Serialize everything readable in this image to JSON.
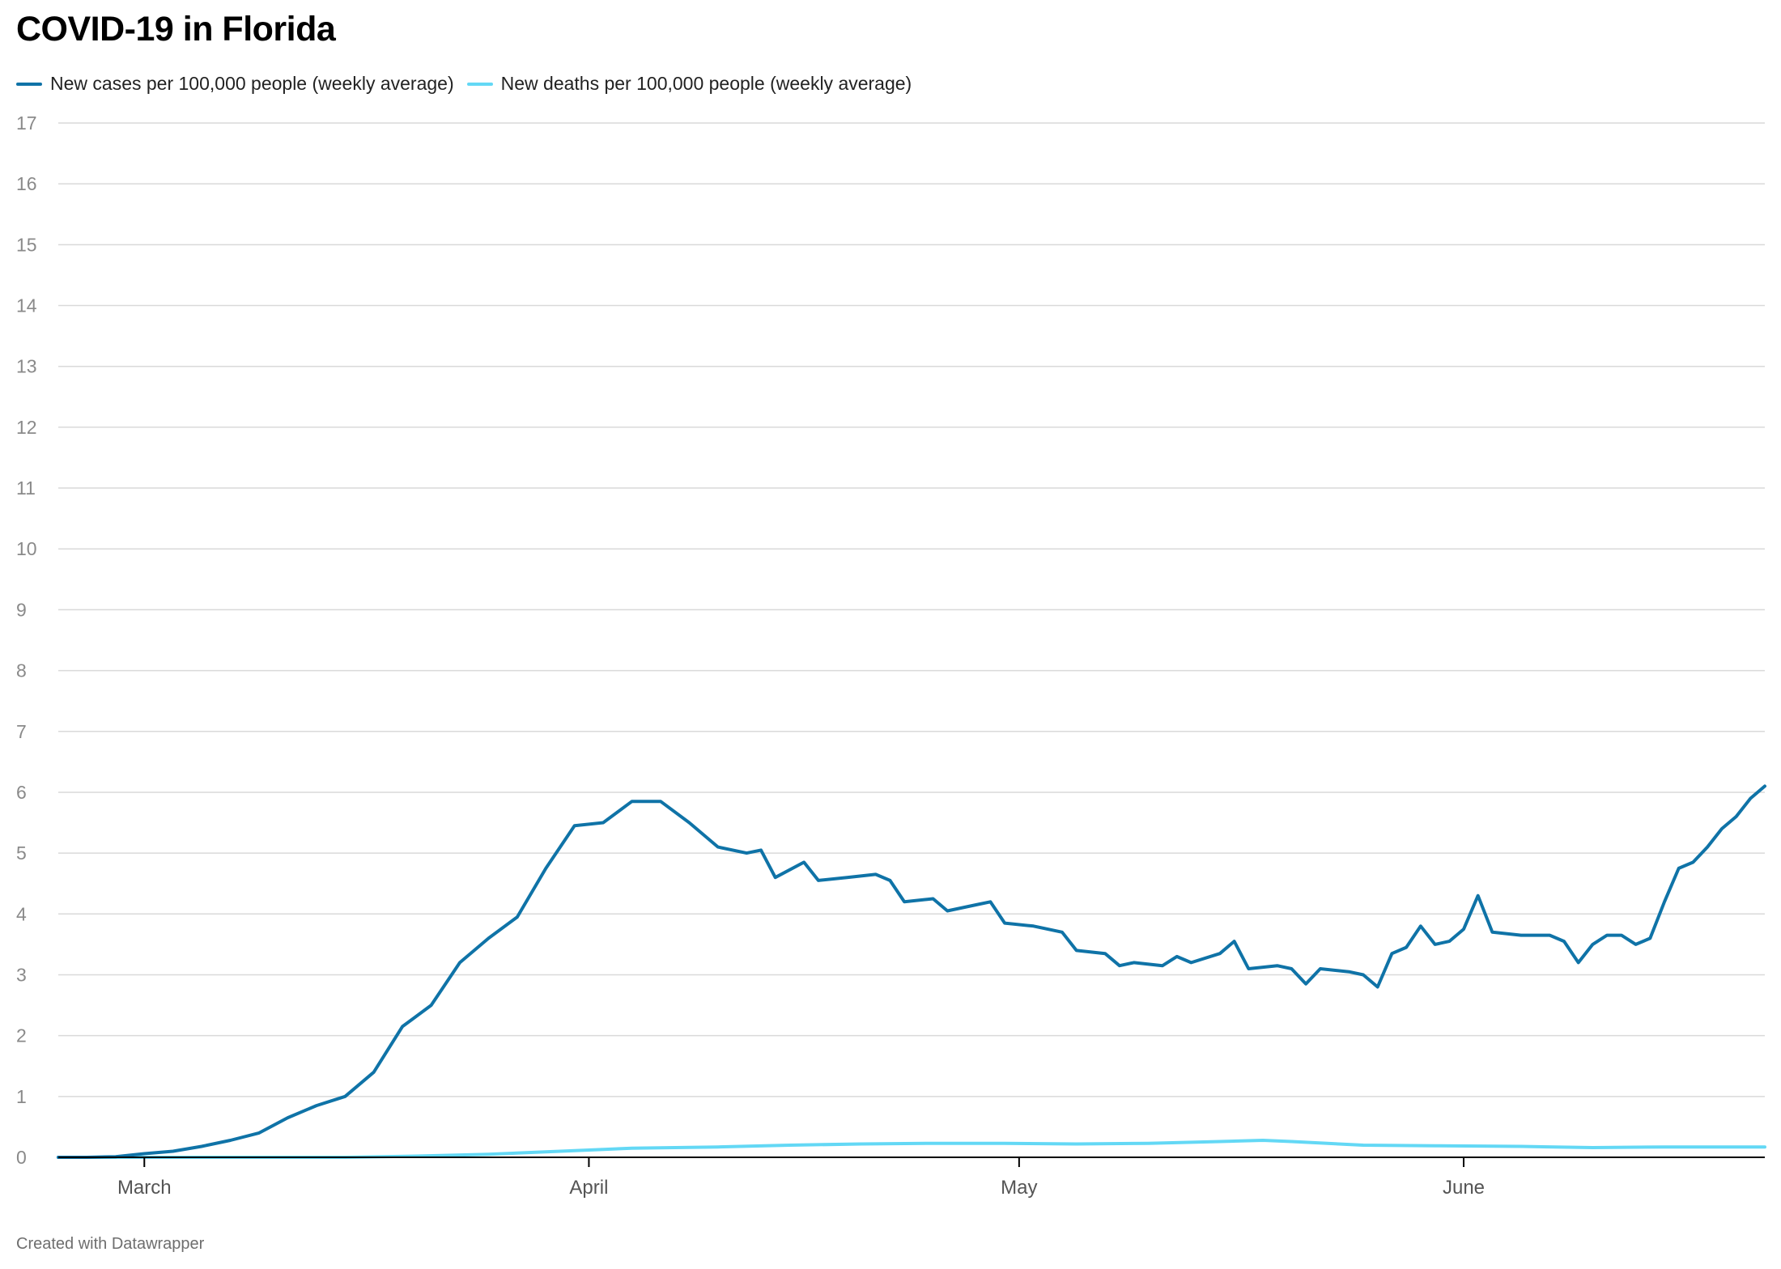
{
  "title": "COVID-19 in Florida",
  "footer": "Created with Datawrapper",
  "colors": {
    "cases": "#0f73a7",
    "deaths": "#63d8f5",
    "grid": "#d9d9d9",
    "axis": "#000000",
    "tick_text": "#8a8a8a"
  },
  "chart_data": {
    "type": "line",
    "title": "COVID-19 in Florida",
    "xlabel": "",
    "ylabel": "",
    "ylim": [
      0,
      17
    ],
    "yticks": [
      0,
      1,
      2,
      3,
      4,
      5,
      6,
      7,
      8,
      9,
      10,
      11,
      12,
      13,
      14,
      15,
      16,
      17
    ],
    "xlim": [
      "2020-02-24",
      "2020-06-22"
    ],
    "xticks": [
      {
        "label": "March",
        "date": "2020-03-01"
      },
      {
        "label": "April",
        "date": "2020-04-01"
      },
      {
        "label": "May",
        "date": "2020-05-01"
      },
      {
        "label": "June",
        "date": "2020-06-01"
      }
    ],
    "grid": true,
    "legend": "top-left",
    "series": [
      {
        "name": "New cases per 100,000 people (weekly average)",
        "color": "#0f73a7",
        "points": [
          [
            "2020-02-24",
            0.0
          ],
          [
            "2020-02-26",
            0.0
          ],
          [
            "2020-02-28",
            0.01
          ],
          [
            "2020-03-01",
            0.06
          ],
          [
            "2020-03-03",
            0.1
          ],
          [
            "2020-03-05",
            0.18
          ],
          [
            "2020-03-07",
            0.28
          ],
          [
            "2020-03-09",
            0.4
          ],
          [
            "2020-03-11",
            0.65
          ],
          [
            "2020-03-13",
            0.85
          ],
          [
            "2020-03-15",
            1.0
          ],
          [
            "2020-03-17",
            1.4
          ],
          [
            "2020-03-19",
            2.15
          ],
          [
            "2020-03-21",
            2.5
          ],
          [
            "2020-03-23",
            3.2
          ],
          [
            "2020-03-25",
            3.6
          ],
          [
            "2020-03-27",
            3.95
          ],
          [
            "2020-03-29",
            4.75
          ],
          [
            "2020-03-31",
            5.45
          ],
          [
            "2020-04-02",
            5.5
          ],
          [
            "2020-04-04",
            5.85
          ],
          [
            "2020-04-06",
            5.85
          ],
          [
            "2020-04-08",
            5.5
          ],
          [
            "2020-04-10",
            5.1
          ],
          [
            "2020-04-12",
            5.0
          ],
          [
            "2020-04-13",
            5.05
          ],
          [
            "2020-04-14",
            4.6
          ],
          [
            "2020-04-16",
            4.85
          ],
          [
            "2020-04-17",
            4.55
          ],
          [
            "2020-04-19",
            4.6
          ],
          [
            "2020-04-21",
            4.65
          ],
          [
            "2020-04-22",
            4.55
          ],
          [
            "2020-04-23",
            4.2
          ],
          [
            "2020-04-25",
            4.25
          ],
          [
            "2020-04-26",
            4.05
          ],
          [
            "2020-04-28",
            4.15
          ],
          [
            "2020-04-29",
            4.2
          ],
          [
            "2020-04-30",
            3.85
          ],
          [
            "2020-05-02",
            3.8
          ],
          [
            "2020-05-04",
            3.7
          ],
          [
            "2020-05-05",
            3.4
          ],
          [
            "2020-05-07",
            3.35
          ],
          [
            "2020-05-08",
            3.15
          ],
          [
            "2020-05-09",
            3.2
          ],
          [
            "2020-05-11",
            3.15
          ],
          [
            "2020-05-12",
            3.3
          ],
          [
            "2020-05-13",
            3.2
          ],
          [
            "2020-05-15",
            3.35
          ],
          [
            "2020-05-16",
            3.55
          ],
          [
            "2020-05-17",
            3.1
          ],
          [
            "2020-05-19",
            3.15
          ],
          [
            "2020-05-20",
            3.1
          ],
          [
            "2020-05-21",
            2.85
          ],
          [
            "2020-05-22",
            3.1
          ],
          [
            "2020-05-24",
            3.05
          ],
          [
            "2020-05-25",
            3.0
          ],
          [
            "2020-05-26",
            2.8
          ],
          [
            "2020-05-27",
            3.35
          ],
          [
            "2020-05-28",
            3.45
          ],
          [
            "2020-05-29",
            3.8
          ],
          [
            "2020-05-30",
            3.5
          ],
          [
            "2020-05-31",
            3.55
          ],
          [
            "2020-06-01",
            3.75
          ],
          [
            "2020-06-02",
            4.3
          ],
          [
            "2020-06-03",
            3.7
          ],
          [
            "2020-06-05",
            3.65
          ],
          [
            "2020-06-07",
            3.65
          ],
          [
            "2020-06-08",
            3.55
          ],
          [
            "2020-06-09",
            3.2
          ],
          [
            "2020-06-10",
            3.5
          ],
          [
            "2020-06-11",
            3.65
          ],
          [
            "2020-06-12",
            3.65
          ],
          [
            "2020-06-13",
            3.5
          ],
          [
            "2020-06-14",
            3.6
          ],
          [
            "2020-06-15",
            4.2
          ],
          [
            "2020-06-16",
            4.75
          ],
          [
            "2020-06-17",
            4.85
          ],
          [
            "2020-06-18",
            5.1
          ],
          [
            "2020-06-19",
            5.4
          ],
          [
            "2020-06-20",
            5.6
          ],
          [
            "2020-06-21",
            5.9
          ],
          [
            "2020-06-22",
            6.1
          ]
        ]
      },
      {
        "name": "New deaths per 100,000 people (weekly average)",
        "color": "#63d8f5",
        "points": [
          [
            "2020-02-24",
            0.0
          ],
          [
            "2020-03-01",
            0.0
          ],
          [
            "2020-03-10",
            0.0
          ],
          [
            "2020-03-15",
            0.0
          ],
          [
            "2020-03-20",
            0.02
          ],
          [
            "2020-03-25",
            0.05
          ],
          [
            "2020-03-30",
            0.1
          ],
          [
            "2020-04-04",
            0.15
          ],
          [
            "2020-04-10",
            0.17
          ],
          [
            "2020-04-15",
            0.2
          ],
          [
            "2020-04-20",
            0.22
          ],
          [
            "2020-04-25",
            0.23
          ],
          [
            "2020-04-30",
            0.23
          ],
          [
            "2020-05-05",
            0.22
          ],
          [
            "2020-05-10",
            0.23
          ],
          [
            "2020-05-15",
            0.26
          ],
          [
            "2020-05-18",
            0.28
          ],
          [
            "2020-05-20",
            0.26
          ],
          [
            "2020-05-25",
            0.2
          ],
          [
            "2020-05-30",
            0.19
          ],
          [
            "2020-06-05",
            0.18
          ],
          [
            "2020-06-10",
            0.16
          ],
          [
            "2020-06-15",
            0.17
          ],
          [
            "2020-06-22",
            0.17
          ]
        ]
      }
    ]
  }
}
